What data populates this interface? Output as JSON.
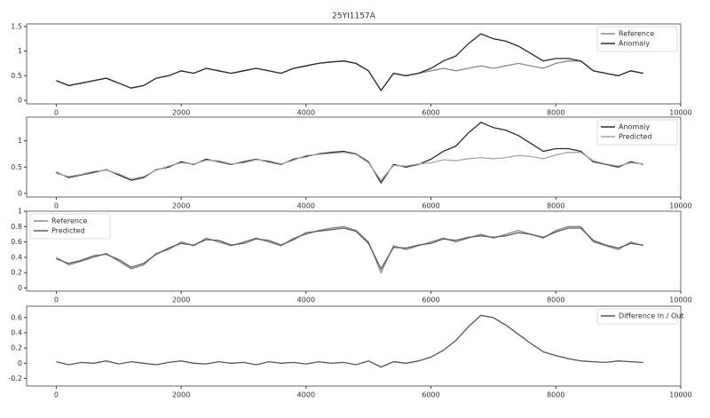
{
  "chart_data": [
    {
      "type": "line",
      "title": "25YI1157A",
      "legend": "upper right",
      "x": [
        0,
        200,
        400,
        600,
        800,
        1000,
        1200,
        1400,
        1600,
        1800,
        2000,
        2200,
        2400,
        2600,
        2800,
        3000,
        3200,
        3400,
        3600,
        3800,
        4000,
        4200,
        4400,
        4600,
        4800,
        5000,
        5200,
        5400,
        5600,
        5800,
        6000,
        6200,
        6400,
        6600,
        6800,
        7000,
        7200,
        7400,
        7600,
        7800,
        8000,
        8200,
        8400,
        8600,
        8800,
        9000,
        9200,
        9400
      ],
      "series": [
        {
          "name": "Reference",
          "color": "#8a8a8a",
          "values": [
            0.4,
            0.3,
            0.35,
            0.4,
            0.45,
            0.35,
            0.25,
            0.3,
            0.45,
            0.5,
            0.6,
            0.55,
            0.65,
            0.6,
            0.55,
            0.6,
            0.65,
            0.6,
            0.55,
            0.65,
            0.7,
            0.75,
            0.78,
            0.8,
            0.75,
            0.6,
            0.2,
            0.55,
            0.5,
            0.55,
            0.6,
            0.65,
            0.6,
            0.65,
            0.7,
            0.65,
            0.7,
            0.75,
            0.7,
            0.65,
            0.75,
            0.8,
            0.8,
            0.6,
            0.55,
            0.5,
            0.6,
            0.55
          ]
        },
        {
          "name": "Anomaly",
          "color": "#2b2b2b",
          "values": [
            0.4,
            0.3,
            0.35,
            0.4,
            0.45,
            0.35,
            0.25,
            0.3,
            0.45,
            0.5,
            0.6,
            0.55,
            0.65,
            0.6,
            0.55,
            0.6,
            0.65,
            0.6,
            0.55,
            0.65,
            0.7,
            0.75,
            0.78,
            0.8,
            0.75,
            0.6,
            0.2,
            0.55,
            0.5,
            0.55,
            0.65,
            0.8,
            0.9,
            1.15,
            1.35,
            1.25,
            1.2,
            1.1,
            0.95,
            0.8,
            0.85,
            0.85,
            0.8,
            0.6,
            0.55,
            0.5,
            0.6,
            0.55
          ]
        }
      ],
      "xlim": [
        -475,
        10000
      ],
      "xticks": [
        0,
        2000,
        4000,
        6000,
        8000,
        10000
      ],
      "ylim": [
        -0.07,
        1.55
      ],
      "yticks": [
        0.0,
        0.5,
        1.0,
        1.5
      ]
    },
    {
      "type": "line",
      "legend": "upper right",
      "x": [
        0,
        200,
        400,
        600,
        800,
        1000,
        1200,
        1400,
        1600,
        1800,
        2000,
        2200,
        2400,
        2600,
        2800,
        3000,
        3200,
        3400,
        3600,
        3800,
        4000,
        4200,
        4400,
        4600,
        4800,
        5000,
        5200,
        5400,
        5600,
        5800,
        6000,
        6200,
        6400,
        6600,
        6800,
        7000,
        7200,
        7400,
        7600,
        7800,
        8000,
        8200,
        8400,
        8600,
        8800,
        9000,
        9200,
        9400
      ],
      "series": [
        {
          "name": "Anomaly",
          "color": "#2b2b2b",
          "values": [
            0.4,
            0.3,
            0.35,
            0.4,
            0.45,
            0.35,
            0.25,
            0.3,
            0.45,
            0.5,
            0.6,
            0.55,
            0.65,
            0.6,
            0.55,
            0.6,
            0.65,
            0.6,
            0.55,
            0.65,
            0.7,
            0.75,
            0.78,
            0.8,
            0.75,
            0.6,
            0.2,
            0.55,
            0.5,
            0.55,
            0.65,
            0.8,
            0.9,
            1.15,
            1.35,
            1.25,
            1.2,
            1.1,
            0.95,
            0.8,
            0.85,
            0.85,
            0.8,
            0.6,
            0.55,
            0.5,
            0.6,
            0.55
          ]
        },
        {
          "name": "Predicted",
          "color": "#a6a6a6",
          "values": [
            0.38,
            0.32,
            0.36,
            0.42,
            0.44,
            0.37,
            0.27,
            0.32,
            0.44,
            0.52,
            0.58,
            0.56,
            0.63,
            0.62,
            0.56,
            0.58,
            0.64,
            0.62,
            0.56,
            0.63,
            0.72,
            0.74,
            0.76,
            0.78,
            0.74,
            0.58,
            0.25,
            0.53,
            0.52,
            0.56,
            0.58,
            0.64,
            0.62,
            0.66,
            0.68,
            0.66,
            0.68,
            0.72,
            0.7,
            0.66,
            0.73,
            0.78,
            0.78,
            0.62,
            0.56,
            0.52,
            0.58,
            0.56
          ]
        }
      ],
      "xlim": [
        -475,
        10000
      ],
      "xticks": [
        0,
        2000,
        4000,
        6000,
        8000,
        10000
      ],
      "ylim": [
        -0.07,
        1.45
      ],
      "yticks": [
        0.0,
        0.5,
        1.0
      ]
    },
    {
      "type": "line",
      "legend": "upper left",
      "x": [
        0,
        200,
        400,
        600,
        800,
        1000,
        1200,
        1400,
        1600,
        1800,
        2000,
        2200,
        2400,
        2600,
        2800,
        3000,
        3200,
        3400,
        3600,
        3800,
        4000,
        4200,
        4400,
        4600,
        4800,
        5000,
        5200,
        5400,
        5600,
        5800,
        6000,
        6200,
        6400,
        6600,
        6800,
        7000,
        7200,
        7400,
        7600,
        7800,
        8000,
        8200,
        8400,
        8600,
        8800,
        9000,
        9200,
        9400
      ],
      "series": [
        {
          "name": "Reference",
          "color": "#8a8a8a",
          "values": [
            0.4,
            0.3,
            0.35,
            0.4,
            0.45,
            0.35,
            0.25,
            0.3,
            0.45,
            0.5,
            0.6,
            0.55,
            0.65,
            0.6,
            0.55,
            0.6,
            0.65,
            0.6,
            0.55,
            0.65,
            0.7,
            0.75,
            0.78,
            0.8,
            0.75,
            0.6,
            0.2,
            0.55,
            0.5,
            0.55,
            0.6,
            0.65,
            0.6,
            0.65,
            0.7,
            0.65,
            0.7,
            0.75,
            0.7,
            0.65,
            0.75,
            0.8,
            0.8,
            0.6,
            0.55,
            0.5,
            0.6,
            0.55
          ]
        },
        {
          "name": "Predicted",
          "color": "#5c5c5c",
          "values": [
            0.38,
            0.32,
            0.36,
            0.42,
            0.44,
            0.37,
            0.27,
            0.32,
            0.44,
            0.52,
            0.58,
            0.56,
            0.63,
            0.62,
            0.56,
            0.58,
            0.64,
            0.62,
            0.56,
            0.63,
            0.72,
            0.74,
            0.76,
            0.78,
            0.74,
            0.58,
            0.25,
            0.53,
            0.52,
            0.56,
            0.58,
            0.64,
            0.62,
            0.66,
            0.68,
            0.66,
            0.68,
            0.72,
            0.7,
            0.66,
            0.73,
            0.78,
            0.78,
            0.62,
            0.56,
            0.52,
            0.58,
            0.56
          ]
        }
      ],
      "xlim": [
        -475,
        10000
      ],
      "xticks": [
        0,
        2000,
        4000,
        6000,
        8000,
        10000
      ],
      "ylim": [
        -0.04,
        1.0
      ],
      "yticks": [
        0.0,
        0.2,
        0.4,
        0.6,
        0.8,
        1.0
      ]
    },
    {
      "type": "line",
      "legend": "upper right",
      "x": [
        0,
        200,
        400,
        600,
        800,
        1000,
        1200,
        1400,
        1600,
        1800,
        2000,
        2200,
        2400,
        2600,
        2800,
        3000,
        3200,
        3400,
        3600,
        3800,
        4000,
        4200,
        4400,
        4600,
        4800,
        5000,
        5200,
        5400,
        5600,
        5800,
        6000,
        6200,
        6400,
        6600,
        6800,
        7000,
        7200,
        7400,
        7600,
        7800,
        8000,
        8200,
        8400,
        8600,
        8800,
        9000,
        9200,
        9400
      ],
      "series": [
        {
          "name": "Difference In / Out",
          "color": "#555555",
          "values": [
            0.02,
            -0.02,
            0.01,
            0,
            0.03,
            -0.01,
            0.02,
            0,
            -0.02,
            0.01,
            0.03,
            0,
            -0.01,
            0.02,
            0,
            0.01,
            -0.02,
            0.02,
            0,
            0.01,
            -0.01,
            0.02,
            0,
            0.01,
            -0.02,
            0.03,
            -0.05,
            0.02,
            0,
            0.03,
            0.08,
            0.17,
            0.3,
            0.48,
            0.63,
            0.6,
            0.5,
            0.38,
            0.26,
            0.15,
            0.1,
            0.06,
            0.03,
            0.02,
            0.01,
            0.03,
            0.02,
            0.01
          ]
        }
      ],
      "xlim": [
        -475,
        10000
      ],
      "xticks": [
        0,
        2000,
        4000,
        6000,
        8000,
        10000
      ],
      "ylim": [
        -0.3,
        0.75
      ],
      "yticks": [
        -0.2,
        0.0,
        0.2,
        0.4,
        0.6
      ]
    }
  ]
}
